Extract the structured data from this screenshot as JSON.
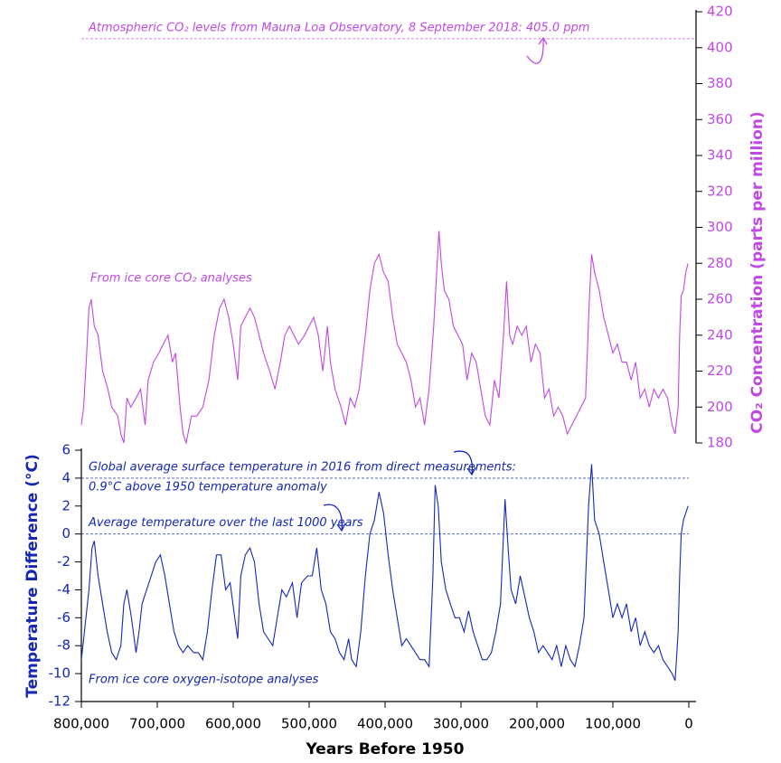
{
  "chart_data": [
    {
      "type": "line",
      "y_axis_position": "right",
      "color": "#c148e6",
      "ylabel": "CO₂ Concentration (parts per million)",
      "xlim": [
        800000,
        0
      ],
      "ylim": [
        180,
        420
      ],
      "yticks": [
        180,
        200,
        220,
        240,
        260,
        280,
        300,
        320,
        340,
        360,
        380,
        400,
        420
      ],
      "annotation": "From ice core CO₂ analyses",
      "reference_lines": [
        {
          "value": 405,
          "label": [
            "Atmospheric CO₂ levels from Mauna Loa Observatory, 8 September 2018: 405.0 ppm"
          ]
        }
      ],
      "x": [
        800000,
        797000,
        793000,
        790000,
        787000,
        783000,
        778000,
        772000,
        765000,
        760000,
        752000,
        748000,
        744000,
        740000,
        735000,
        728000,
        722000,
        716000,
        712000,
        705000,
        698000,
        692000,
        686000,
        680000,
        676000,
        670000,
        666000,
        662000,
        655000,
        648000,
        640000,
        632000,
        625000,
        618000,
        612000,
        606000,
        600000,
        594000,
        590000,
        584000,
        578000,
        572000,
        566000,
        560000,
        552000,
        545000,
        538000,
        532000,
        526000,
        520000,
        514000,
        506000,
        500000,
        494000,
        488000,
        482000,
        476000,
        472000,
        466000,
        458000,
        452000,
        446000,
        440000,
        434000,
        426000,
        420000,
        414000,
        408000,
        402000,
        396000,
        390000,
        384000,
        378000,
        372000,
        366000,
        360000,
        354000,
        348000,
        342000,
        336000,
        332000,
        329000,
        326000,
        322000,
        316000,
        310000,
        304000,
        298000,
        292000,
        286000,
        280000,
        274000,
        268000,
        262000,
        256000,
        250000,
        244000,
        240000,
        236000,
        232000,
        226000,
        220000,
        214000,
        208000,
        202000,
        196000,
        190000,
        184000,
        178000,
        172000,
        166000,
        160000,
        154000,
        148000,
        142000,
        136000,
        131000,
        128000,
        124000,
        118000,
        112000,
        106000,
        100000,
        94000,
        88000,
        82000,
        76000,
        70000,
        64000,
        58000,
        52000,
        46000,
        40000,
        34000,
        28000,
        22000,
        18000,
        14000,
        12000,
        10000,
        7000,
        4000,
        1000
      ],
      "values": [
        190,
        200,
        230,
        255,
        260,
        245,
        240,
        220,
        210,
        200,
        195,
        185,
        180,
        205,
        200,
        205,
        210,
        190,
        215,
        225,
        230,
        235,
        240,
        225,
        230,
        200,
        185,
        180,
        195,
        195,
        200,
        215,
        240,
        255,
        260,
        250,
        235,
        215,
        245,
        250,
        255,
        250,
        240,
        230,
        220,
        210,
        225,
        240,
        245,
        240,
        235,
        240,
        245,
        250,
        240,
        220,
        245,
        225,
        210,
        200,
        190,
        205,
        200,
        210,
        240,
        265,
        280,
        285,
        275,
        270,
        250,
        235,
        230,
        225,
        215,
        200,
        205,
        190,
        210,
        245,
        275,
        298,
        280,
        265,
        260,
        245,
        240,
        235,
        215,
        230,
        225,
        210,
        195,
        190,
        215,
        205,
        240,
        270,
        240,
        235,
        245,
        240,
        245,
        225,
        235,
        230,
        205,
        210,
        195,
        200,
        195,
        185,
        190,
        195,
        200,
        205,
        260,
        285,
        275,
        265,
        250,
        240,
        230,
        235,
        225,
        225,
        215,
        225,
        205,
        210,
        200,
        210,
        205,
        210,
        205,
        190,
        185,
        200,
        240,
        262,
        265,
        275,
        280
      ]
    },
    {
      "type": "line",
      "y_axis_position": "left",
      "color": "#1428b4",
      "ylabel": "Temperature Difference (°C)",
      "xlabel": "Years Before 1950",
      "xlim": [
        800000,
        0
      ],
      "ylim": [
        -12,
        6
      ],
      "yticks": [
        -12,
        -10,
        -8,
        -6,
        -4,
        -2,
        0,
        2,
        4,
        6
      ],
      "xticks": [
        {
          "value": 800000,
          "label": "800,000"
        },
        {
          "value": 700000,
          "label": "700,000"
        },
        {
          "value": 600000,
          "label": "600,000"
        },
        {
          "value": 500000,
          "label": "500,000"
        },
        {
          "value": 400000,
          "label": "400,000"
        },
        {
          "value": 300000,
          "label": "300,000"
        },
        {
          "value": 200000,
          "label": "200,000"
        },
        {
          "value": 100000,
          "label": "100,000"
        },
        0
      ],
      "annotation": "From ice core oxygen-isotope analyses",
      "reference_lines": [
        {
          "value": 4,
          "label": [
            "Global average surface temperature in 2016 from direct measurements:",
            "0.9°C above 1950 temperature anomaly"
          ]
        },
        {
          "value": 0,
          "label": [
            "Average temperature over the last 1000 years"
          ]
        }
      ],
      "x": [
        800000,
        796000,
        790000,
        786000,
        783000,
        778000,
        772000,
        766000,
        760000,
        754000,
        748000,
        744000,
        740000,
        734000,
        728000,
        724000,
        720000,
        714000,
        708000,
        702000,
        696000,
        690000,
        684000,
        678000,
        672000,
        666000,
        660000,
        652000,
        646000,
        640000,
        634000,
        628000,
        622000,
        616000,
        610000,
        604000,
        598000,
        594000,
        590000,
        584000,
        578000,
        572000,
        566000,
        560000,
        554000,
        548000,
        542000,
        536000,
        530000,
        522000,
        516000,
        510000,
        502000,
        496000,
        490000,
        484000,
        478000,
        472000,
        466000,
        460000,
        454000,
        448000,
        444000,
        438000,
        432000,
        426000,
        420000,
        414000,
        408000,
        402000,
        396000,
        390000,
        384000,
        378000,
        372000,
        366000,
        360000,
        354000,
        348000,
        342000,
        337000,
        334000,
        330000,
        326000,
        320000,
        314000,
        308000,
        302000,
        296000,
        290000,
        284000,
        278000,
        272000,
        266000,
        260000,
        254000,
        248000,
        242000,
        238000,
        234000,
        228000,
        222000,
        216000,
        210000,
        204000,
        198000,
        192000,
        186000,
        180000,
        174000,
        168000,
        162000,
        156000,
        150000,
        144000,
        138000,
        132000,
        128000,
        124000,
        118000,
        112000,
        106000,
        100000,
        94000,
        88000,
        82000,
        76000,
        70000,
        64000,
        58000,
        52000,
        46000,
        40000,
        34000,
        28000,
        22000,
        18000,
        14000,
        12000,
        10000,
        7000,
        4000,
        1000
      ],
      "values": [
        -9,
        -7,
        -4,
        -1,
        -0.5,
        -3,
        -5,
        -7,
        -8.5,
        -9,
        -8,
        -5,
        -4,
        -6,
        -8.5,
        -7,
        -5,
        -4,
        -3,
        -2,
        -1.5,
        -3,
        -5,
        -7,
        -8,
        -8.5,
        -8,
        -8.5,
        -8.5,
        -9,
        -7,
        -4,
        -1.5,
        -1.5,
        -4,
        -3.5,
        -6,
        -7.5,
        -3,
        -1.5,
        -1,
        -2,
        -5,
        -7,
        -7.5,
        -8,
        -6,
        -4,
        -4.5,
        -3.5,
        -6,
        -3.5,
        -3,
        -3,
        -1,
        -4,
        -5,
        -7,
        -7.5,
        -8.5,
        -9,
        -7.5,
        -9,
        -9.5,
        -7,
        -3,
        0,
        1,
        3,
        1.5,
        -1.5,
        -4,
        -6,
        -8,
        -7.5,
        -8,
        -8.5,
        -9,
        -9,
        -9.5,
        -3,
        3.5,
        2,
        -2,
        -4,
        -5,
        -6,
        -6,
        -7,
        -5.5,
        -7,
        -8,
        -9,
        -9,
        -8.5,
        -7,
        -5,
        2.5,
        -1,
        -4,
        -5,
        -3,
        -4.5,
        -6,
        -7,
        -8.5,
        -8,
        -8.5,
        -9,
        -8,
        -9.5,
        -8,
        -9,
        -9.5,
        -8,
        -6,
        2,
        5,
        1,
        0,
        -2,
        -4,
        -6,
        -5,
        -6,
        -5,
        -7,
        -6,
        -8,
        -7,
        -8,
        -8.5,
        -8,
        -9,
        -9.5,
        -10,
        -10.5,
        -7,
        -3,
        0,
        1,
        1.5,
        2
      ]
    }
  ]
}
